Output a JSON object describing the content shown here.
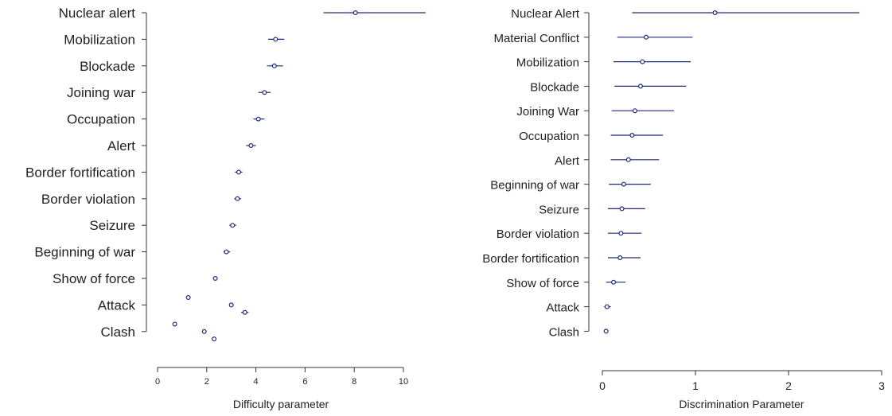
{
  "chart_data": [
    {
      "type": "scatter",
      "xlabel": "Difficulty parameter",
      "xlim": [
        0,
        10
      ],
      "xticks": [
        "0",
        "2",
        "4",
        "6",
        "8",
        "10"
      ],
      "tick_values": [
        0,
        2,
        4,
        6,
        8,
        10
      ],
      "categories": [
        "Nuclear alert",
        "Mobilization",
        "Blockade",
        "Joining war",
        "Occupation",
        "Alert",
        "Border fortification",
        "Border violation",
        "Seizure",
        "Beginning of war",
        "Show of force",
        "Attack",
        "Clash"
      ],
      "series": [
        {
          "points": [
            {
              "category": "Nuclear alert",
              "estimate": 8.05,
              "lower": 6.75,
              "upper": 10.9
            },
            {
              "category": "Mobilization",
              "estimate": 4.8,
              "lower": 4.5,
              "upper": 5.15
            },
            {
              "category": "Blockade",
              "estimate": 4.75,
              "lower": 4.45,
              "upper": 5.1
            },
            {
              "category": "Joining war",
              "estimate": 4.35,
              "lower": 4.1,
              "upper": 4.6
            },
            {
              "category": "Occupation",
              "estimate": 4.1,
              "lower": 3.9,
              "upper": 4.35
            },
            {
              "category": "Alert",
              "estimate": 3.8,
              "lower": 3.6,
              "upper": 4.0
            },
            {
              "category": "Border fortification",
              "estimate": 3.3,
              "lower": 3.15,
              "upper": 3.45
            },
            {
              "category": "Border violation",
              "estimate": 3.25,
              "lower": 3.12,
              "upper": 3.4
            },
            {
              "category": "Seizure",
              "estimate": 3.05,
              "lower": 2.92,
              "upper": 3.2
            },
            {
              "category": "Beginning of war",
              "estimate": 2.8,
              "lower": 2.68,
              "upper": 2.95
            },
            {
              "category": "Show of force",
              "estimate": 2.35,
              "lower": 2.35,
              "upper": 2.35
            },
            {
              "category": "Attack",
              "estimate": 1.25,
              "lower": 1.25,
              "upper": 1.25
            },
            {
              "category": "Attack",
              "estimate": 3.0,
              "lower": 3.0,
              "upper": 3.0
            },
            {
              "category": "Attack",
              "estimate": 3.55,
              "lower": 3.4,
              "upper": 3.7
            },
            {
              "category": "Clash",
              "estimate": 0.7,
              "lower": 0.7,
              "upper": 0.7
            },
            {
              "category": "Clash",
              "estimate": 1.9,
              "lower": 1.9,
              "upper": 1.9
            },
            {
              "category": "Clash",
              "estimate": 2.3,
              "lower": 2.3,
              "upper": 2.3
            }
          ]
        }
      ]
    },
    {
      "type": "scatter",
      "xlabel": "Discrimination Parameter",
      "xlim": [
        0,
        3
      ],
      "xticks": [
        "0",
        "1",
        "2",
        "3"
      ],
      "tick_values": [
        0,
        1,
        2,
        3
      ],
      "categories": [
        "Nuclear Alert",
        "Material Conflict",
        "Mobilization",
        "Blockade",
        "Joining War",
        "Occupation",
        "Alert",
        "Beginning of war",
        "Seizure",
        "Border violation",
        "Border fortification",
        "Show of force",
        "Attack",
        "Clash"
      ],
      "series": [
        {
          "points": [
            {
              "category": "Nuclear Alert",
              "estimate": 1.21,
              "lower": 0.32,
              "upper": 2.76
            },
            {
              "category": "Material Conflict",
              "estimate": 0.47,
              "lower": 0.16,
              "upper": 0.97
            },
            {
              "category": "Mobilization",
              "estimate": 0.43,
              "lower": 0.12,
              "upper": 0.95
            },
            {
              "category": "Blockade",
              "estimate": 0.41,
              "lower": 0.13,
              "upper": 0.9
            },
            {
              "category": "Joining War",
              "estimate": 0.35,
              "lower": 0.1,
              "upper": 0.77
            },
            {
              "category": "Occupation",
              "estimate": 0.32,
              "lower": 0.09,
              "upper": 0.65
            },
            {
              "category": "Alert",
              "estimate": 0.28,
              "lower": 0.09,
              "upper": 0.61
            },
            {
              "category": "Beginning of war",
              "estimate": 0.23,
              "lower": 0.07,
              "upper": 0.52
            },
            {
              "category": "Seizure",
              "estimate": 0.21,
              "lower": 0.06,
              "upper": 0.46
            },
            {
              "category": "Border violation",
              "estimate": 0.2,
              "lower": 0.06,
              "upper": 0.42
            },
            {
              "category": "Border fortification",
              "estimate": 0.19,
              "lower": 0.06,
              "upper": 0.41
            },
            {
              "category": "Show of force",
              "estimate": 0.12,
              "lower": 0.04,
              "upper": 0.25
            },
            {
              "category": "Attack",
              "estimate": 0.05,
              "lower": 0.02,
              "upper": 0.09
            },
            {
              "category": "Clash",
              "estimate": 0.04,
              "lower": 0.02,
              "upper": 0.06
            }
          ]
        }
      ]
    }
  ]
}
